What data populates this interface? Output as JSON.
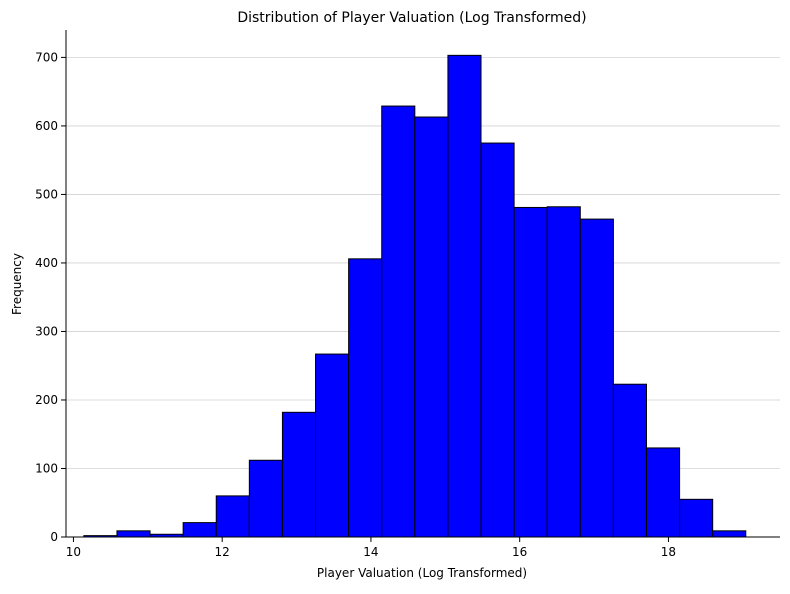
{
  "chart_data": {
    "type": "bar",
    "subtype": "histogram",
    "title": "Distribution of Player Valuation (Log Transformed)",
    "xlabel": "Player Valuation (Log Transformed)",
    "ylabel": "Frequency",
    "xlim": [
      9.9,
      19.5
    ],
    "ylim": [
      0,
      740
    ],
    "xticks": [
      10,
      12,
      14,
      16,
      18
    ],
    "yticks": [
      0,
      100,
      200,
      300,
      400,
      500,
      600,
      700
    ],
    "bin_edges": [
      10.14,
      10.585,
      11.03,
      11.475,
      11.92,
      12.365,
      12.81,
      13.255,
      13.7,
      14.145,
      14.59,
      15.035,
      15.48,
      15.925,
      16.37,
      16.815,
      17.26,
      17.705,
      18.15,
      18.595,
      19.04
    ],
    "values": [
      2,
      9,
      4,
      21,
      60,
      112,
      182,
      267,
      406,
      629,
      613,
      703,
      575,
      481,
      482,
      464,
      223,
      130,
      55,
      9
    ],
    "bar_color": "#0000ff",
    "edge_color": "#000000",
    "grid": "horizontal",
    "legend": "none"
  }
}
